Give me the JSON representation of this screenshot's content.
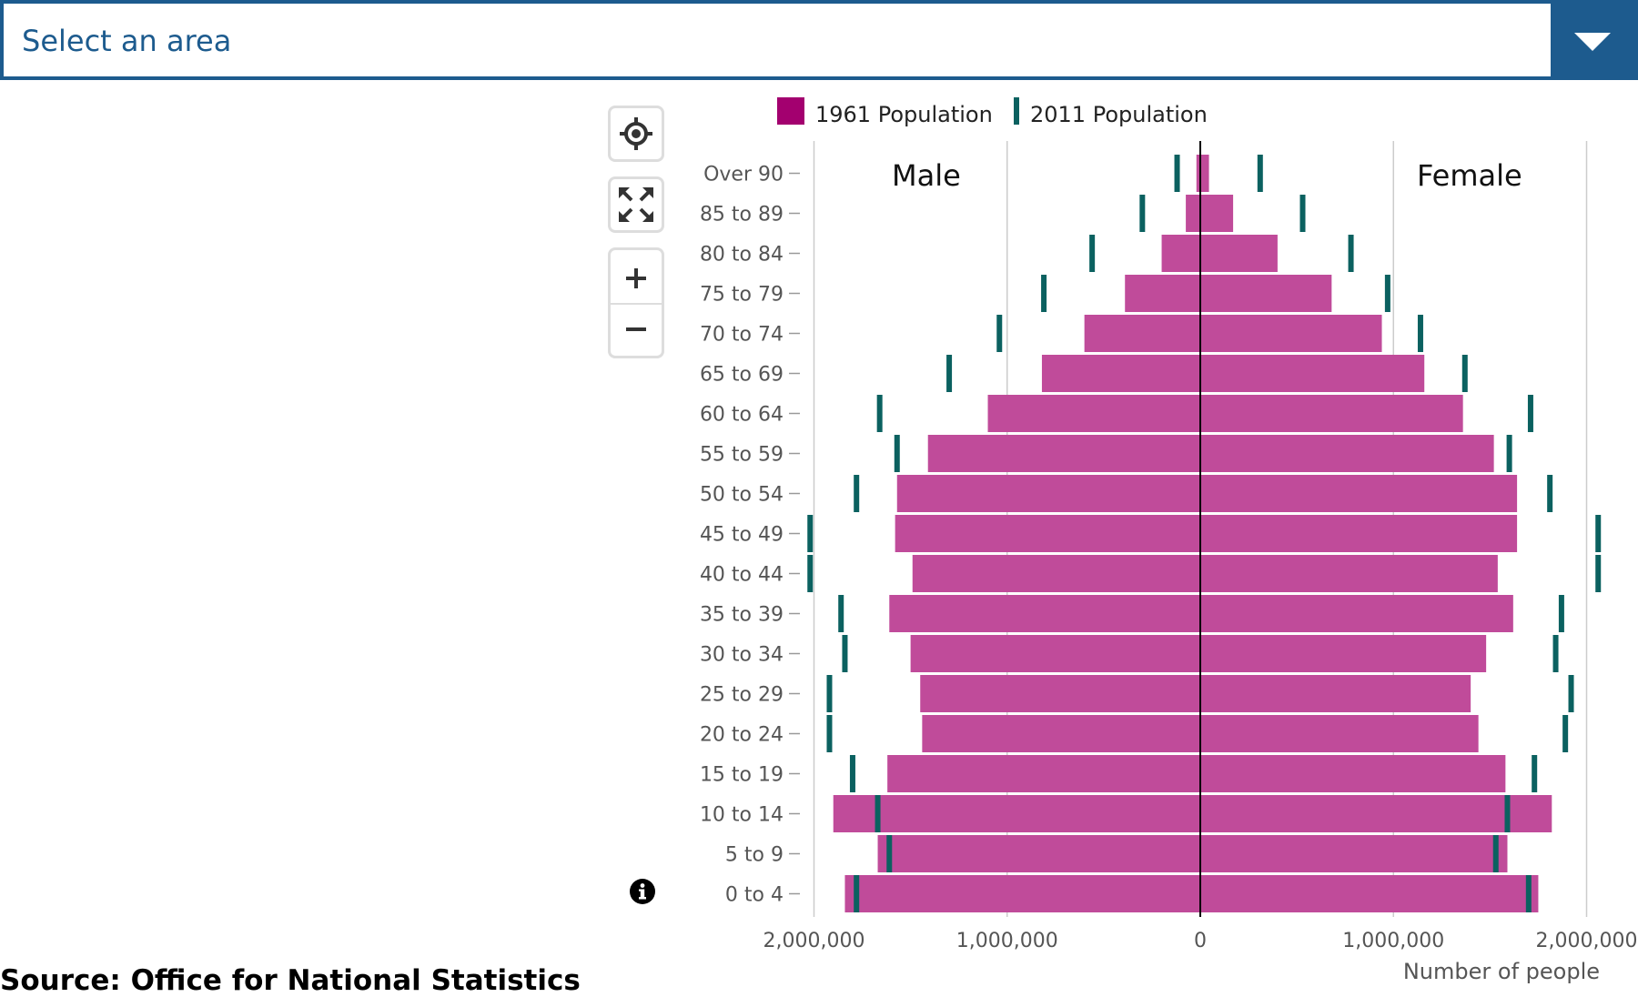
{
  "area_select": {
    "label": "Select an area"
  },
  "map_controls": {
    "locate_icon": "crosshair-icon",
    "fullscreen_icon": "expand-icon",
    "zoom_in_icon": "plus-icon",
    "zoom_out_icon": "minus-icon",
    "info_icon": "info-icon"
  },
  "source": "Source: Office for National Statistics",
  "colors": {
    "accent": "#1d5b8e",
    "bar_1961": "#c04b9a",
    "legend_1961": "#a3006f",
    "marker_2011": "#0b6160"
  },
  "chart_data": {
    "type": "bar",
    "orientation": "horizontal-pyramid",
    "title": "",
    "xlabel": "Number of people",
    "ylabel": "",
    "xlim": [
      -2000000,
      2000000
    ],
    "x_ticks": [
      -2000000,
      -1000000,
      0,
      1000000,
      2000000
    ],
    "x_tick_labels": [
      "2,000,000",
      "1,000,000",
      "0",
      "1,000,000",
      "2,000,000"
    ],
    "side_labels": {
      "left": "Male",
      "right": "Female"
    },
    "legend": {
      "position": "top",
      "entries": [
        "1961 Population",
        "2011 Population"
      ]
    },
    "grid": true,
    "categories": [
      "Over 90",
      "85 to 89",
      "80 to 84",
      "75 to 79",
      "70 to 74",
      "65 to 69",
      "60 to 64",
      "55 to 59",
      "50 to 54",
      "45 to 49",
      "40 to 44",
      "35 to 39",
      "30 to 34",
      "25 to 29",
      "20 to 24",
      "15 to 19",
      "10 to 14",
      "5 to 9",
      "0 to 4"
    ],
    "series": [
      {
        "name": "1961 Population",
        "kind": "bar",
        "male": [
          20000,
          75000,
          200000,
          390000,
          600000,
          820000,
          1100000,
          1410000,
          1570000,
          1580000,
          1490000,
          1610000,
          1500000,
          1450000,
          1440000,
          1620000,
          1900000,
          1670000,
          1840000
        ],
        "female": [
          45000,
          170000,
          400000,
          680000,
          940000,
          1160000,
          1360000,
          1520000,
          1640000,
          1640000,
          1540000,
          1620000,
          1480000,
          1400000,
          1440000,
          1580000,
          1820000,
          1590000,
          1750000
        ]
      },
      {
        "name": "2011 Population",
        "kind": "marker",
        "male": [
          120000,
          300000,
          560000,
          810000,
          1040000,
          1300000,
          1660000,
          1570000,
          1780000,
          2020000,
          2020000,
          1860000,
          1840000,
          1920000,
          1920000,
          1800000,
          1670000,
          1610000,
          1780000
        ],
        "female": [
          310000,
          530000,
          780000,
          970000,
          1140000,
          1370000,
          1710000,
          1600000,
          1810000,
          2060000,
          2060000,
          1870000,
          1840000,
          1920000,
          1890000,
          1730000,
          1590000,
          1530000,
          1700000
        ]
      }
    ]
  }
}
